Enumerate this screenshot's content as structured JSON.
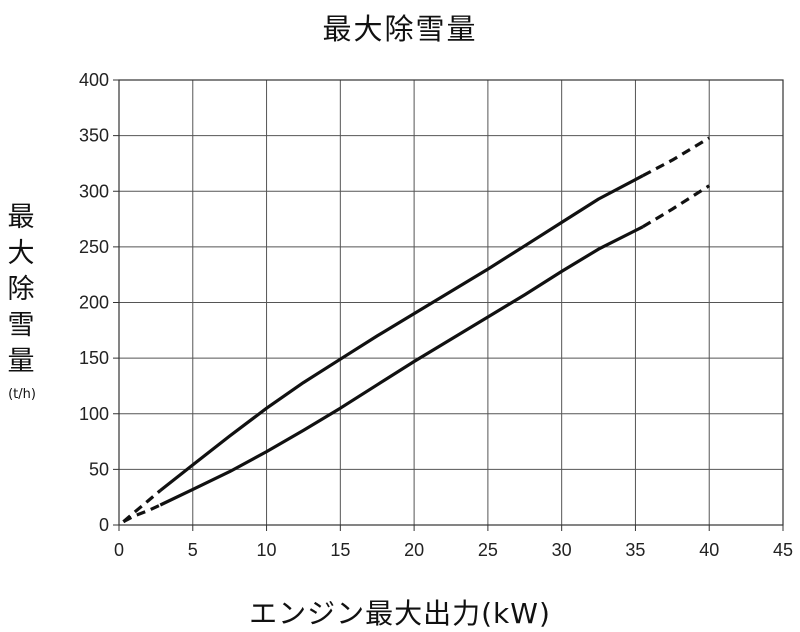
{
  "chart_data": {
    "type": "line",
    "title": "最大除雪量",
    "xlabel": "エンジン最大出力(kW)",
    "ylabel": "最大除雪量",
    "ylabel_unit": "(t/h)",
    "xlim": [
      0,
      45
    ],
    "ylim": [
      0,
      400
    ],
    "xticks": [
      0,
      5,
      10,
      15,
      20,
      25,
      30,
      35,
      40,
      45
    ],
    "yticks": [
      0,
      50,
      100,
      150,
      200,
      250,
      300,
      350,
      400
    ],
    "grid": true,
    "legend": "none",
    "line_color": "#111111",
    "series": [
      {
        "segments": [
          {
            "style": "dashed",
            "points": [
              [
                0.3,
                3
              ],
              [
                1.0,
                11
              ],
              [
                2.0,
                22
              ],
              [
                2.8,
                31
              ]
            ]
          },
          {
            "style": "solid",
            "points": [
              [
                2.8,
                31
              ],
              [
                5,
                54
              ],
              [
                7.5,
                80
              ],
              [
                10,
                105
              ],
              [
                12.5,
                128
              ],
              [
                15,
                149
              ],
              [
                17.5,
                170
              ],
              [
                20,
                190
              ],
              [
                22.5,
                210
              ],
              [
                25,
                230
              ],
              [
                27.5,
                251
              ],
              [
                30,
                272
              ],
              [
                32.5,
                293
              ],
              [
                35.5,
                314
              ]
            ]
          },
          {
            "style": "dashed",
            "points": [
              [
                35.5,
                314
              ],
              [
                37.5,
                328
              ],
              [
                40,
                348
              ]
            ]
          }
        ]
      },
      {
        "segments": [
          {
            "style": "dashed",
            "points": [
              [
                0.3,
                3
              ],
              [
                1.0,
                8
              ],
              [
                2.0,
                13
              ],
              [
                2.8,
                18
              ]
            ]
          },
          {
            "style": "solid",
            "points": [
              [
                2.8,
                18
              ],
              [
                5,
                32
              ],
              [
                7.5,
                48
              ],
              [
                10,
                66
              ],
              [
                12.5,
                85
              ],
              [
                15,
                105
              ],
              [
                17.5,
                126
              ],
              [
                20,
                147
              ],
              [
                22.5,
                167
              ],
              [
                25,
                187
              ],
              [
                27.5,
                207
              ],
              [
                30,
                228
              ],
              [
                32.5,
                248
              ],
              [
                35.5,
                268
              ]
            ]
          },
          {
            "style": "dashed",
            "points": [
              [
                35.5,
                268
              ],
              [
                37.5,
                284
              ],
              [
                40,
                305
              ]
            ]
          }
        ]
      }
    ]
  }
}
